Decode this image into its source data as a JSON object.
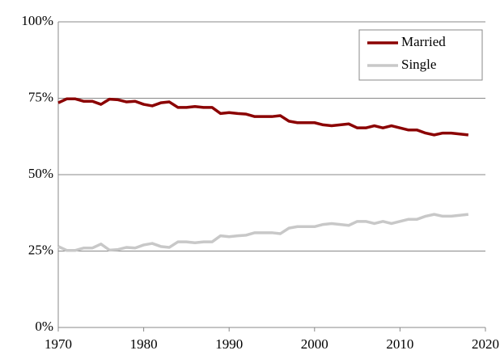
{
  "chart_data": {
    "type": "line",
    "x": [
      1970,
      1971,
      1972,
      1973,
      1974,
      1975,
      1976,
      1977,
      1978,
      1979,
      1980,
      1981,
      1982,
      1983,
      1984,
      1985,
      1986,
      1987,
      1988,
      1989,
      1990,
      1991,
      1992,
      1993,
      1994,
      1995,
      1996,
      1997,
      1998,
      1999,
      2000,
      2001,
      2002,
      2003,
      2004,
      2005,
      2006,
      2007,
      2008,
      2009,
      2010,
      2011,
      2012,
      2013,
      2014,
      2015,
      2016,
      2017,
      2018
    ],
    "series": [
      {
        "name": "Married",
        "color": "#8b0000",
        "values": [
          73.5,
          74.8,
          74.8,
          74,
          74,
          73,
          74.7,
          74.5,
          73.8,
          74,
          73,
          72.5,
          73.5,
          73.8,
          72,
          72,
          72.3,
          72,
          72,
          70,
          70.3,
          70,
          69.8,
          69,
          69,
          69,
          69.3,
          67.5,
          67,
          67,
          67,
          66.3,
          66,
          66.3,
          66.6,
          65.3,
          65.3,
          66,
          65.3,
          66,
          65.3,
          64.6,
          64.6,
          63.6,
          63,
          63.6,
          63.6,
          63.3,
          63
        ]
      },
      {
        "name": "Single",
        "color": "#c8c8c8",
        "values": [
          26.5,
          25.2,
          25.2,
          26,
          26,
          27.3,
          25.3,
          25.5,
          26.2,
          26,
          27,
          27.5,
          26.5,
          26.2,
          28,
          28,
          27.7,
          28,
          28,
          30,
          29.7,
          30,
          30.2,
          31,
          31,
          31,
          30.7,
          32.5,
          33,
          33,
          33,
          33.7,
          34,
          33.7,
          33.4,
          34.7,
          34.7,
          34,
          34.7,
          34,
          34.7,
          35.4,
          35.4,
          36.4,
          37,
          36.4,
          36.4,
          36.7,
          37
        ]
      }
    ],
    "xlim": [
      1970,
      2020
    ],
    "xticks": [
      1970,
      1980,
      1990,
      2000,
      2010,
      2020
    ],
    "ylim": [
      0,
      100
    ],
    "yticks": [
      {
        "value": 0,
        "label": "0%"
      },
      {
        "value": 25,
        "label": "25%"
      },
      {
        "value": 50,
        "label": "50%"
      },
      {
        "value": 75,
        "label": "75%"
      },
      {
        "value": 100,
        "label": "100%"
      }
    ],
    "grid": true,
    "legend": "upper right"
  }
}
